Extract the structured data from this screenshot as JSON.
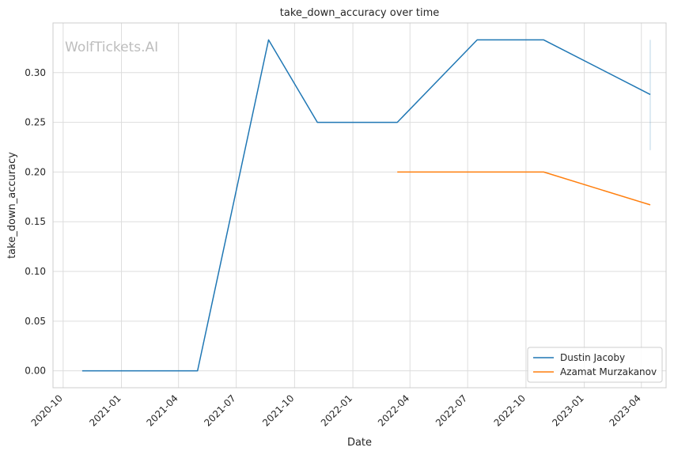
{
  "chart_data": {
    "type": "line",
    "title": "take_down_accuracy over time",
    "xlabel": "Date",
    "ylabel": "take_down_accuracy",
    "watermark": "WolfTickets.AI",
    "x_ticks": [
      "2020-10",
      "2021-01",
      "2021-04",
      "2021-07",
      "2021-10",
      "2022-01",
      "2022-04",
      "2022-07",
      "2022-10",
      "2023-01",
      "2023-04"
    ],
    "y_ticks": [
      "0.00",
      "0.05",
      "0.10",
      "0.15",
      "0.20",
      "0.25",
      "0.30"
    ],
    "xlim": [
      "2020-09-15",
      "2023-05-10"
    ],
    "ylim": [
      -0.017,
      0.35
    ],
    "grid": true,
    "legend_position": "bottom-right",
    "series": [
      {
        "name": "Dustin Jacoby",
        "color": "#1f77b4",
        "points": [
          {
            "x": "2020-10-31",
            "y": 0.0
          },
          {
            "x": "2021-05-01",
            "y": 0.0
          },
          {
            "x": "2021-08-21",
            "y": 0.333
          },
          {
            "x": "2021-11-06",
            "y": 0.25
          },
          {
            "x": "2022-03-12",
            "y": 0.25
          },
          {
            "x": "2022-07-16",
            "y": 0.333
          },
          {
            "x": "2022-10-29",
            "y": 0.333
          },
          {
            "x": "2023-04-15",
            "y": 0.278
          }
        ]
      },
      {
        "name": "Azamat Murzakanov",
        "color": "#ff7f0e",
        "points": [
          {
            "x": "2022-03-12",
            "y": 0.2
          },
          {
            "x": "2022-10-29",
            "y": 0.2
          },
          {
            "x": "2023-04-15",
            "y": 0.167
          }
        ]
      }
    ],
    "error_band": {
      "x": "2023-04-15",
      "y_low": 0.222,
      "y_high": 0.333,
      "color": "#1f77b4"
    }
  }
}
